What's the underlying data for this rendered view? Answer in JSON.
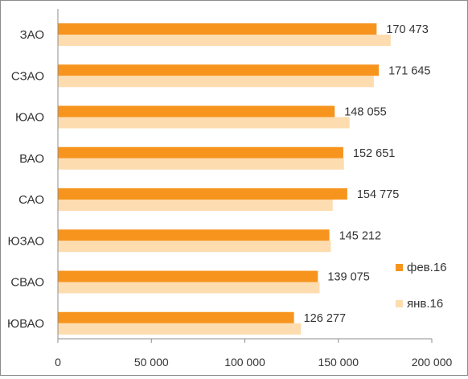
{
  "chart_data": {
    "type": "bar",
    "orientation": "horizontal",
    "categories": [
      "ЗАО",
      "СЗАО",
      "ЮАО",
      "ВАО",
      "САО",
      "ЮЗАО",
      "СВАО",
      "ЮВАО"
    ],
    "series": [
      {
        "name": "фев.16",
        "color": "#f7941d",
        "values": [
          170473,
          171645,
          148055,
          152651,
          154775,
          145212,
          139075,
          126277
        ],
        "data_labels": [
          "170 473",
          "171 645",
          "148 055",
          "152 651",
          "154 775",
          "145 212",
          "139 075",
          "126 277"
        ]
      },
      {
        "name": "янв.16",
        "color": "#fddcb0",
        "values": [
          178000,
          169000,
          156000,
          153000,
          147000,
          146000,
          140000,
          130000
        ]
      }
    ],
    "xlim": [
      0,
      200000
    ],
    "x_ticks": [
      0,
      50000,
      100000,
      150000,
      200000
    ],
    "x_tick_labels": [
      "0",
      "50 000",
      "100 000",
      "150 000",
      "200 000"
    ],
    "grid": false,
    "legend_position": "right"
  }
}
